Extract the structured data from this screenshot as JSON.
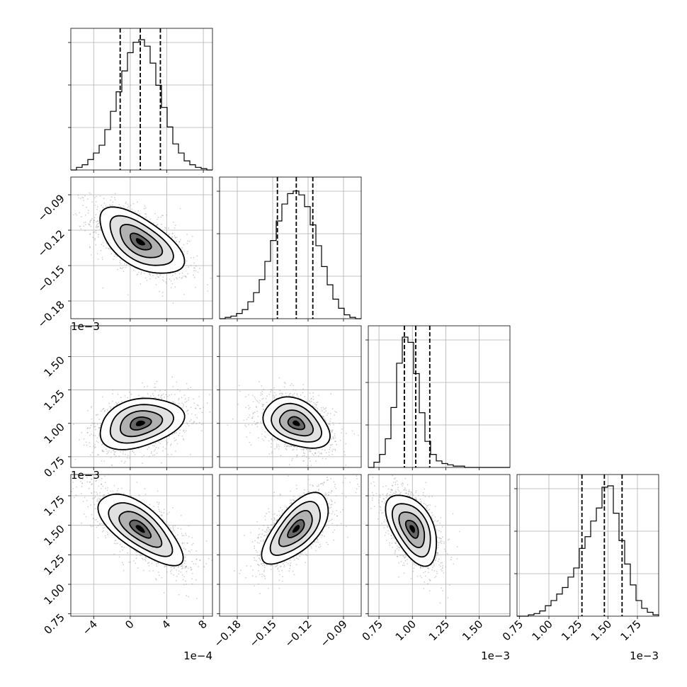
{
  "chart_data": {
    "type": "corner",
    "grid": true,
    "quantiles": [
      0.16,
      0.5,
      0.84
    ],
    "parameters": [
      {
        "range": [
          -6.5,
          9.0
        ],
        "ticks": [
          -4,
          0,
          4,
          8
        ],
        "tick_labels": [
          "−4",
          "0",
          "4",
          "8"
        ],
        "offset_text": "1e−4",
        "quantile_values": [
          -1.1,
          1.1,
          3.3
        ],
        "hist_bins": [
          0,
          0.02,
          0.04,
          0.08,
          0.13,
          0.19,
          0.31,
          0.45,
          0.6,
          0.76,
          0.9,
          0.98,
          1.0,
          0.95,
          0.82,
          0.65,
          0.48,
          0.33,
          0.2,
          0.13,
          0.07,
          0.04,
          0.02,
          0.01,
          0
        ]
      },
      {
        "range": [
          -0.195,
          -0.075
        ],
        "ticks": [
          -0.18,
          -0.15,
          -0.12,
          -0.09
        ],
        "tick_labels": [
          "−0.18",
          "−0.15",
          "−0.12",
          "−0.09"
        ],
        "offset_text": "",
        "quantile_values": [
          -0.146,
          -0.13,
          -0.116
        ],
        "hist_bins": [
          0,
          0.01,
          0.02,
          0.04,
          0.07,
          0.13,
          0.2,
          0.3,
          0.44,
          0.6,
          0.75,
          0.88,
          0.96,
          0.98,
          0.95,
          0.86,
          0.72,
          0.56,
          0.4,
          0.26,
          0.15,
          0.08,
          0.03,
          0.01,
          0
        ]
      },
      {
        "range": [
          0.67,
          1.73
        ],
        "ticks": [
          0.75,
          1.0,
          1.25,
          1.5
        ],
        "tick_labels": [
          "0.75",
          "1.00",
          "1.25",
          "1.50"
        ],
        "offset_text": "1e−3",
        "quantile_values": [
          0.94,
          1.025,
          1.13
        ],
        "hist_bins": [
          0,
          0.04,
          0.1,
          0.22,
          0.46,
          0.8,
          1.0,
          0.96,
          0.72,
          0.42,
          0.2,
          0.1,
          0.05,
          0.03,
          0.02,
          0.01,
          0.01,
          0,
          0,
          0,
          0,
          0,
          0,
          0,
          0
        ]
      },
      {
        "range": [
          0.73,
          1.93
        ],
        "ticks": [
          0.75,
          1.0,
          1.25,
          1.5,
          1.75
        ],
        "tick_labels": [
          "0.75",
          "1.00",
          "1.25",
          "1.50",
          "1.75"
        ],
        "offset_text": "1e−3",
        "quantile_values": [
          1.28,
          1.47,
          1.62
        ],
        "hist_bins": [
          0,
          0,
          0.01,
          0.02,
          0.04,
          0.08,
          0.12,
          0.17,
          0.22,
          0.3,
          0.37,
          0.52,
          0.61,
          0.73,
          0.83,
          0.99,
          1.0,
          0.79,
          0.58,
          0.4,
          0.24,
          0.12,
          0.06,
          0.03,
          0.01
        ]
      }
    ],
    "pairs": [
      {
        "x": 0,
        "y": 1,
        "center": [
          1.1,
          -0.13
        ],
        "sd": [
          2.3,
          0.014
        ],
        "corr": -0.6
      },
      {
        "x": 0,
        "y": 2,
        "center": [
          1.1,
          1.0
        ],
        "sd": [
          2.3,
          0.095
        ],
        "corr": 0.3
      },
      {
        "x": 1,
        "y": 2,
        "center": [
          -0.13,
          1.0
        ],
        "sd": [
          0.014,
          0.095
        ],
        "corr": -0.35
      },
      {
        "x": 0,
        "y": 3,
        "center": [
          1.1,
          1.47
        ],
        "sd": [
          2.3,
          0.15
        ],
        "corr": -0.7
      },
      {
        "x": 1,
        "y": 3,
        "center": [
          -0.13,
          1.47
        ],
        "sd": [
          0.014,
          0.15
        ],
        "corr": 0.65
      },
      {
        "x": 2,
        "y": 3,
        "center": [
          1.0,
          1.47
        ],
        "sd": [
          0.095,
          0.15
        ],
        "corr": -0.5
      }
    ]
  }
}
